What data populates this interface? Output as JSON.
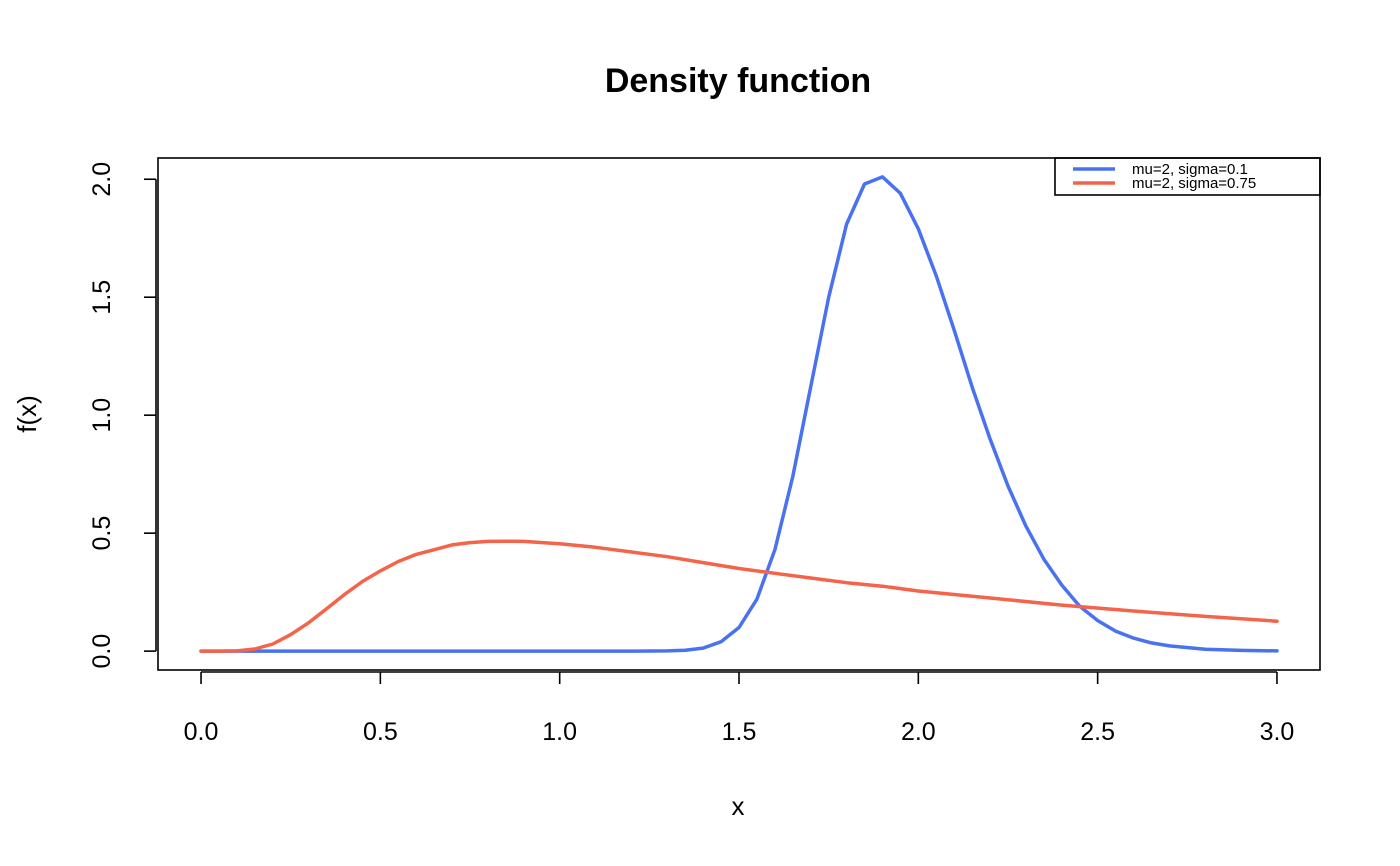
{
  "chart_data": {
    "type": "line",
    "title": "Density function",
    "xlabel": "x",
    "ylabel": "f(x)",
    "xlim": [
      -0.12,
      3.12
    ],
    "ylim": [
      -0.08,
      2.09
    ],
    "xticks": [
      0,
      0.5,
      1,
      1.5,
      2,
      2.5,
      3
    ],
    "xtick_labels": [
      "0.0",
      "0.5",
      "1.0",
      "1.5",
      "2.0",
      "2.5",
      "3.0"
    ],
    "yticks": [
      0,
      0.5,
      1,
      1.5,
      2
    ],
    "ytick_labels": [
      "0.0",
      "0.5",
      "1.0",
      "1.5",
      "2.0"
    ],
    "grid": false,
    "legend_position": "top-right",
    "series": [
      {
        "name": "mu=2, sigma=0.1",
        "color": "#4a72f0",
        "x": [
          0,
          0.1,
          0.2,
          0.3,
          0.4,
          0.5,
          0.6,
          0.7,
          0.8,
          0.9,
          1.0,
          1.1,
          1.2,
          1.3,
          1.35,
          1.4,
          1.45,
          1.5,
          1.55,
          1.6,
          1.65,
          1.7,
          1.75,
          1.8,
          1.85,
          1.9,
          1.95,
          2.0,
          2.05,
          2.1,
          2.15,
          2.2,
          2.25,
          2.3,
          2.35,
          2.4,
          2.45,
          2.5,
          2.55,
          2.6,
          2.65,
          2.7,
          2.8,
          2.9,
          3.0
        ],
        "y": [
          0,
          0,
          0,
          0,
          0,
          0,
          0,
          0,
          0,
          0,
          0,
          0,
          0,
          0.001,
          0.004,
          0.013,
          0.04,
          0.1,
          0.22,
          0.43,
          0.74,
          1.12,
          1.5,
          1.81,
          1.98,
          2.01,
          1.94,
          1.79,
          1.59,
          1.36,
          1.12,
          0.9,
          0.7,
          0.53,
          0.39,
          0.28,
          0.19,
          0.13,
          0.085,
          0.055,
          0.035,
          0.022,
          0.008,
          0.003,
          0.001
        ]
      },
      {
        "name": "mu=2, sigma=0.75",
        "color": "#f4644a",
        "x": [
          0,
          0.05,
          0.1,
          0.15,
          0.2,
          0.25,
          0.3,
          0.35,
          0.4,
          0.45,
          0.5,
          0.55,
          0.6,
          0.65,
          0.7,
          0.75,
          0.8,
          0.85,
          0.9,
          1.0,
          1.1,
          1.2,
          1.3,
          1.4,
          1.5,
          1.6,
          1.7,
          1.8,
          1.9,
          2.0,
          2.2,
          2.4,
          2.6,
          2.8,
          3.0
        ],
        "y": [
          0,
          0,
          0.001,
          0.009,
          0.03,
          0.07,
          0.12,
          0.18,
          0.24,
          0.295,
          0.34,
          0.38,
          0.41,
          0.43,
          0.45,
          0.46,
          0.465,
          0.466,
          0.465,
          0.455,
          0.44,
          0.42,
          0.4,
          0.375,
          0.35,
          0.33,
          0.31,
          0.29,
          0.275,
          0.255,
          0.225,
          0.195,
          0.17,
          0.147,
          0.127
        ]
      }
    ]
  }
}
